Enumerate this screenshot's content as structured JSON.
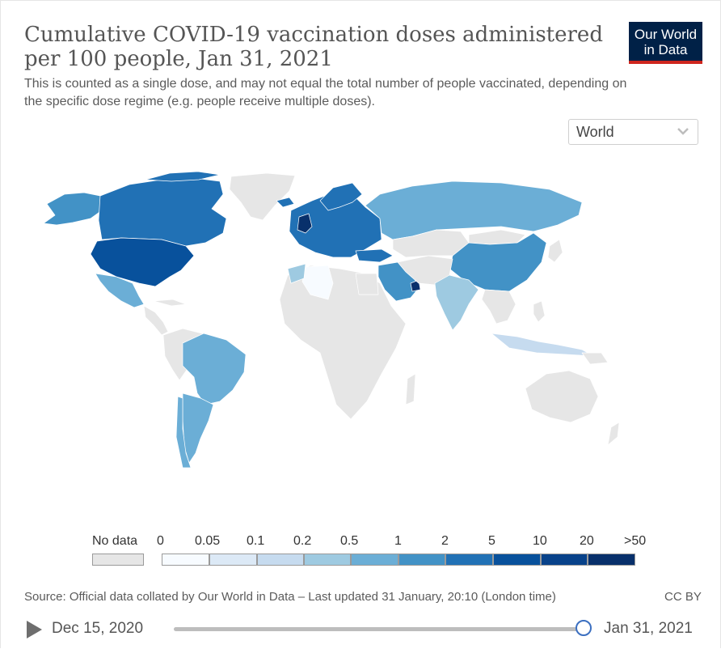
{
  "header": {
    "title": "Cumulative COVID-19 vaccination doses administered per 100 people, Jan 31, 2021",
    "subtitle": "This is counted as a single dose, and may not equal the total number of people vaccinated, depending on the specific dose regime (e.g. people receive multiple doses).",
    "logo_line1": "Our World",
    "logo_line2": "in Data"
  },
  "region_select": {
    "value": "World"
  },
  "legend": {
    "no_data_label": "No data",
    "no_data_color": "#e6e6e6",
    "ticks": [
      "0",
      "0.05",
      "0.1",
      "0.2",
      "0.5",
      "1",
      "2",
      "5",
      "10",
      "20",
      ">50"
    ],
    "bin_colors": [
      "#f7fbff",
      "#dce9f6",
      "#c6dbef",
      "#9ecae1",
      "#6baed6",
      "#4292c6",
      "#2171b5",
      "#08519c",
      "#08428a",
      "#08306b"
    ]
  },
  "footer": {
    "source": "Source: Official data collated by Our World in Data – Last updated 31 January, 20:10 (London time)",
    "license": "CC BY"
  },
  "timeline": {
    "start_date": "Dec 15, 2020",
    "end_date": "Jan 31, 2021"
  },
  "icons": {
    "play": "play-icon",
    "chevron": "chevron-down-icon",
    "slider_handle": "slider-handle"
  }
}
